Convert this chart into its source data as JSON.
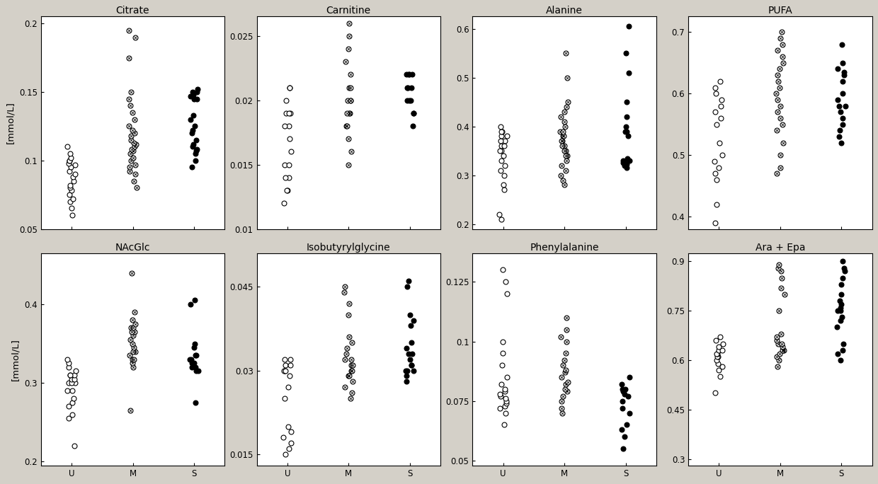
{
  "panels": [
    {
      "title": "Citrate",
      "ylabel": "[mmol/L]",
      "ylim": [
        0.05,
        0.205
      ],
      "yticks": [
        0.05,
        0.1,
        0.15,
        0.2
      ],
      "yticklabels": [
        "0.05",
        "0.1",
        "0.15",
        "0.2"
      ],
      "groups": {
        "U": [
          0.06,
          0.065,
          0.07,
          0.072,
          0.075,
          0.078,
          0.08,
          0.082,
          0.085,
          0.088,
          0.09,
          0.092,
          0.095,
          0.097,
          0.098,
          0.1,
          0.1,
          0.102,
          0.105,
          0.11
        ],
        "M": [
          0.08,
          0.085,
          0.09,
          0.092,
          0.095,
          0.097,
          0.1,
          0.102,
          0.105,
          0.107,
          0.108,
          0.11,
          0.112,
          0.113,
          0.115,
          0.118,
          0.12,
          0.122,
          0.125,
          0.13,
          0.135,
          0.14,
          0.145,
          0.15,
          0.175,
          0.19,
          0.195
        ],
        "S": [
          0.095,
          0.1,
          0.105,
          0.107,
          0.108,
          0.11,
          0.112,
          0.115,
          0.12,
          0.122,
          0.125,
          0.13,
          0.133,
          0.145,
          0.145,
          0.147,
          0.148,
          0.15,
          0.15,
          0.152
        ]
      }
    },
    {
      "title": "Carnitine",
      "ylabel": "",
      "ylim": [
        0.01,
        0.0265
      ],
      "yticks": [
        0.01,
        0.015,
        0.02,
        0.025
      ],
      "yticklabels": [
        "0.01",
        "0.015",
        "0.02",
        "0.025"
      ],
      "groups": {
        "U": [
          0.012,
          0.013,
          0.013,
          0.014,
          0.014,
          0.015,
          0.015,
          0.016,
          0.017,
          0.018,
          0.018,
          0.019,
          0.019,
          0.019,
          0.02,
          0.021,
          0.021
        ],
        "M": [
          0.015,
          0.016,
          0.017,
          0.018,
          0.018,
          0.019,
          0.019,
          0.019,
          0.02,
          0.02,
          0.02,
          0.021,
          0.021,
          0.022,
          0.023,
          0.024,
          0.025,
          0.026
        ],
        "S": [
          0.018,
          0.019,
          0.019,
          0.02,
          0.02,
          0.02,
          0.021,
          0.021,
          0.021,
          0.022,
          0.022,
          0.022,
          0.022
        ]
      }
    },
    {
      "title": "Alanine",
      "ylabel": "",
      "ylim": [
        0.19,
        0.625
      ],
      "yticks": [
        0.2,
        0.3,
        0.4,
        0.5,
        0.6
      ],
      "yticklabels": [
        "0.2",
        "0.3",
        "0.4",
        "0.5",
        "0.6"
      ],
      "groups": {
        "U": [
          0.21,
          0.22,
          0.27,
          0.28,
          0.3,
          0.31,
          0.32,
          0.33,
          0.34,
          0.35,
          0.35,
          0.36,
          0.36,
          0.37,
          0.37,
          0.38,
          0.38,
          0.39,
          0.39,
          0.4
        ],
        "M": [
          0.28,
          0.29,
          0.3,
          0.31,
          0.32,
          0.33,
          0.34,
          0.34,
          0.35,
          0.35,
          0.36,
          0.36,
          0.37,
          0.37,
          0.38,
          0.38,
          0.39,
          0.39,
          0.4,
          0.41,
          0.42,
          0.43,
          0.44,
          0.45,
          0.5,
          0.55
        ],
        "S": [
          0.315,
          0.32,
          0.322,
          0.325,
          0.33,
          0.33,
          0.33,
          0.335,
          0.38,
          0.39,
          0.39,
          0.4,
          0.42,
          0.45,
          0.51,
          0.55,
          0.605
        ]
      }
    },
    {
      "title": "PUFA",
      "ylabel": "",
      "ylim": [
        0.38,
        0.725
      ],
      "yticks": [
        0.4,
        0.5,
        0.6,
        0.7
      ],
      "yticklabels": [
        "0.4",
        "0.5",
        "0.6",
        "0.7"
      ],
      "groups": {
        "U": [
          0.39,
          0.42,
          0.46,
          0.47,
          0.48,
          0.49,
          0.5,
          0.52,
          0.55,
          0.56,
          0.57,
          0.58,
          0.59,
          0.6,
          0.61,
          0.62
        ],
        "M": [
          0.47,
          0.48,
          0.5,
          0.52,
          0.54,
          0.55,
          0.56,
          0.57,
          0.58,
          0.59,
          0.6,
          0.61,
          0.62,
          0.63,
          0.64,
          0.65,
          0.66,
          0.67,
          0.68,
          0.69,
          0.7
        ],
        "S": [
          0.52,
          0.53,
          0.54,
          0.55,
          0.56,
          0.57,
          0.58,
          0.58,
          0.59,
          0.6,
          0.62,
          0.63,
          0.635,
          0.64,
          0.65,
          0.68
        ]
      }
    },
    {
      "title": "NAcGlc",
      "ylabel": "[mmol/L]",
      "ylim": [
        0.195,
        0.465
      ],
      "yticks": [
        0.2,
        0.3,
        0.4
      ],
      "yticklabels": [
        "0.2",
        "0.3",
        "0.4"
      ],
      "groups": {
        "U": [
          0.22,
          0.255,
          0.26,
          0.27,
          0.275,
          0.28,
          0.29,
          0.29,
          0.3,
          0.3,
          0.3,
          0.305,
          0.305,
          0.31,
          0.31,
          0.31,
          0.315,
          0.32,
          0.325,
          0.33
        ],
        "M": [
          0.265,
          0.32,
          0.325,
          0.33,
          0.33,
          0.335,
          0.34,
          0.34,
          0.345,
          0.35,
          0.355,
          0.36,
          0.365,
          0.365,
          0.37,
          0.37,
          0.375,
          0.38,
          0.39,
          0.44
        ],
        "S": [
          0.275,
          0.315,
          0.315,
          0.32,
          0.32,
          0.325,
          0.325,
          0.33,
          0.33,
          0.335,
          0.335,
          0.345,
          0.35,
          0.4,
          0.405
        ]
      }
    },
    {
      "title": "Isobutyrylglycine",
      "ylabel": "",
      "ylim": [
        0.013,
        0.051
      ],
      "yticks": [
        0.015,
        0.03,
        0.045
      ],
      "yticklabels": [
        "0.015",
        "0.03",
        "0.045"
      ],
      "groups": {
        "U": [
          0.015,
          0.016,
          0.017,
          0.018,
          0.019,
          0.02,
          0.025,
          0.027,
          0.029,
          0.03,
          0.03,
          0.03,
          0.031,
          0.031,
          0.032,
          0.032
        ],
        "M": [
          0.025,
          0.026,
          0.027,
          0.028,
          0.029,
          0.029,
          0.03,
          0.03,
          0.031,
          0.031,
          0.032,
          0.032,
          0.033,
          0.034,
          0.035,
          0.036,
          0.04,
          0.042,
          0.044,
          0.045
        ],
        "S": [
          0.028,
          0.029,
          0.03,
          0.03,
          0.03,
          0.031,
          0.031,
          0.032,
          0.033,
          0.033,
          0.034,
          0.035,
          0.038,
          0.039,
          0.04,
          0.045,
          0.046
        ]
      }
    },
    {
      "title": "Phenylalanine",
      "ylabel": "",
      "ylim": [
        0.048,
        0.137
      ],
      "yticks": [
        0.05,
        0.075,
        0.1,
        0.125
      ],
      "yticklabels": [
        "0.05",
        "0.075",
        "0.1",
        "0.125"
      ],
      "groups": {
        "U": [
          0.065,
          0.07,
          0.072,
          0.073,
          0.074,
          0.075,
          0.076,
          0.077,
          0.078,
          0.079,
          0.08,
          0.082,
          0.085,
          0.09,
          0.095,
          0.1,
          0.12,
          0.125,
          0.13
        ],
        "M": [
          0.07,
          0.072,
          0.075,
          0.077,
          0.079,
          0.08,
          0.082,
          0.083,
          0.085,
          0.087,
          0.088,
          0.09,
          0.092,
          0.095,
          0.1,
          0.102,
          0.105,
          0.11
        ],
        "S": [
          0.055,
          0.06,
          0.063,
          0.065,
          0.07,
          0.072,
          0.075,
          0.077,
          0.078,
          0.079,
          0.08,
          0.08,
          0.082,
          0.085
        ]
      }
    },
    {
      "title": "Ara + Epa",
      "ylabel": "",
      "ylim": [
        0.28,
        0.925
      ],
      "yticks": [
        0.3,
        0.45,
        0.6,
        0.75,
        0.9
      ],
      "yticklabels": [
        "0.3",
        "0.45",
        "0.6",
        "0.75",
        "0.9"
      ],
      "groups": {
        "U": [
          0.5,
          0.55,
          0.57,
          0.58,
          0.59,
          0.6,
          0.61,
          0.61,
          0.62,
          0.62,
          0.63,
          0.63,
          0.64,
          0.65,
          0.66,
          0.67
        ],
        "M": [
          0.58,
          0.6,
          0.61,
          0.62,
          0.63,
          0.63,
          0.63,
          0.64,
          0.65,
          0.65,
          0.66,
          0.67,
          0.68,
          0.75,
          0.8,
          0.82,
          0.85,
          0.87,
          0.88,
          0.89
        ],
        "S": [
          0.6,
          0.62,
          0.63,
          0.65,
          0.7,
          0.72,
          0.73,
          0.75,
          0.75,
          0.76,
          0.77,
          0.78,
          0.8,
          0.83,
          0.85,
          0.87,
          0.88,
          0.9
        ]
      }
    }
  ],
  "group_positions": {
    "U": 1,
    "M": 2,
    "S": 3
  },
  "group_labels": [
    "U",
    "M",
    "S"
  ],
  "jitter": 0.07,
  "markersize": 5,
  "fig_facecolor": "#d4d0c8",
  "ax_facecolor": "#ffffff",
  "title_fontsize": 10,
  "tick_fontsize": 8.5,
  "label_fontsize": 9.5
}
